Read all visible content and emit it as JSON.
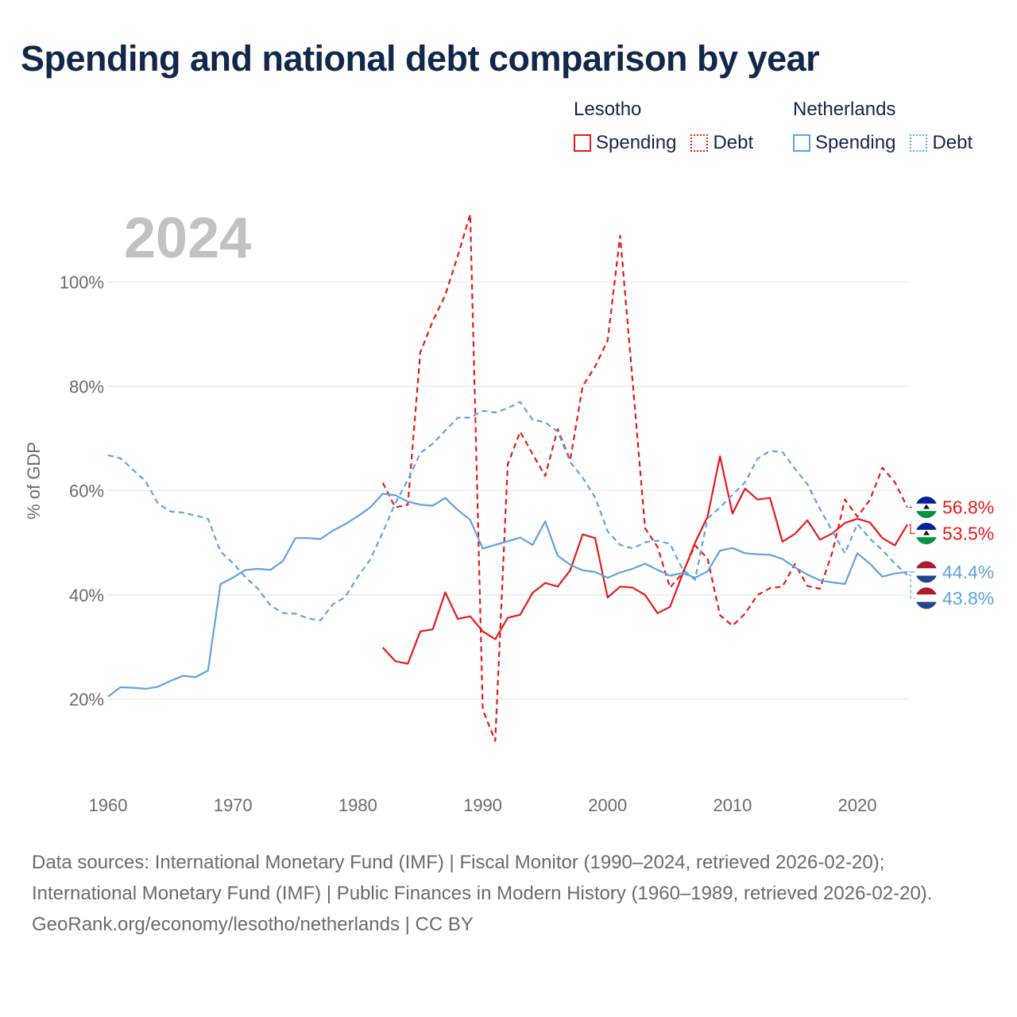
{
  "title": "Spending and national debt comparison by year",
  "legend": {
    "groups": [
      {
        "country": "Lesotho",
        "spending_label": "Spending",
        "debt_label": "Debt",
        "color": "#e8191b"
      },
      {
        "country": "Netherlands",
        "spending_label": "Spending",
        "debt_label": "Debt",
        "color": "#5fa3e6"
      }
    ]
  },
  "footer": {
    "sources": "Data sources: International Monetary Fund (IMF) | Fiscal Monitor (1990–2024, retrieved 2026-02-20); International Monetary Fund (IMF) | Public Finances in Modern History (1960–1989, retrieved 2026-02-20).",
    "credit": "GeoRank.org/economy/lesotho/netherlands | CC BY"
  },
  "chart_data": {
    "type": "line",
    "year_label": "2024",
    "ylabel": "% of GDP",
    "xlim": [
      1960,
      2024
    ],
    "ylim": [
      10,
      115
    ],
    "x_ticks": [
      1960,
      1970,
      1980,
      1990,
      2000,
      2010,
      2020
    ],
    "y_ticks": [
      20,
      40,
      60,
      80,
      100
    ],
    "y_tick_labels": [
      "20%",
      "40%",
      "60%",
      "80%",
      "100%"
    ],
    "series": [
      {
        "name": "Lesotho Spending",
        "country": "Lesotho",
        "kind": "spending",
        "color": "#e8191b",
        "dash": false,
        "end_label": "53.5%",
        "points": [
          [
            1982,
            29.9
          ],
          [
            1983,
            27.3
          ],
          [
            1984,
            26.8
          ],
          [
            1985,
            33.0
          ],
          [
            1986,
            33.4
          ],
          [
            1987,
            40.5
          ],
          [
            1988,
            35.4
          ],
          [
            1989,
            35.9
          ],
          [
            1990,
            33.0
          ],
          [
            1991,
            31.5
          ],
          [
            1992,
            35.6
          ],
          [
            1993,
            36.2
          ],
          [
            1994,
            40.4
          ],
          [
            1995,
            42.3
          ],
          [
            1996,
            41.6
          ],
          [
            1997,
            44.7
          ],
          [
            1998,
            51.6
          ],
          [
            1999,
            50.9
          ],
          [
            2000,
            39.5
          ],
          [
            2001,
            41.6
          ],
          [
            2002,
            41.4
          ],
          [
            2003,
            40.0
          ],
          [
            2004,
            36.5
          ],
          [
            2005,
            37.7
          ],
          [
            2006,
            44.0
          ],
          [
            2007,
            50.0
          ],
          [
            2008,
            55.0
          ],
          [
            2009,
            66.6
          ],
          [
            2010,
            55.6
          ],
          [
            2011,
            60.4
          ],
          [
            2012,
            58.3
          ],
          [
            2013,
            58.6
          ],
          [
            2014,
            50.2
          ],
          [
            2015,
            51.7
          ],
          [
            2016,
            54.3
          ],
          [
            2017,
            50.6
          ],
          [
            2018,
            51.8
          ],
          [
            2019,
            53.8
          ],
          [
            2020,
            54.6
          ],
          [
            2021,
            53.9
          ],
          [
            2022,
            50.9
          ],
          [
            2023,
            49.5
          ],
          [
            2024,
            53.5
          ]
        ]
      },
      {
        "name": "Lesotho Debt",
        "country": "Lesotho",
        "kind": "debt",
        "color": "#e8191b",
        "dash": true,
        "end_label": "56.8%",
        "points": [
          [
            1982,
            61.5
          ],
          [
            1983,
            56.8
          ],
          [
            1984,
            57.3
          ],
          [
            1985,
            86.5
          ],
          [
            1986,
            92.5
          ],
          [
            1987,
            97.5
          ],
          [
            1988,
            105.0
          ],
          [
            1989,
            113.0
          ],
          [
            1990,
            18.0
          ],
          [
            1991,
            12.0
          ],
          [
            1992,
            65.0
          ],
          [
            1993,
            71.3
          ],
          [
            1994,
            67.0
          ],
          [
            1995,
            62.8
          ],
          [
            1996,
            71.8
          ],
          [
            1997,
            65.8
          ],
          [
            1998,
            80.0
          ],
          [
            1999,
            83.8
          ],
          [
            2000,
            88.8
          ],
          [
            2001,
            108.9
          ],
          [
            2002,
            81.0
          ],
          [
            2003,
            52.8
          ],
          [
            2004,
            49.2
          ],
          [
            2005,
            41.4
          ],
          [
            2006,
            44.2
          ],
          [
            2007,
            49.5
          ],
          [
            2008,
            47.0
          ],
          [
            2009,
            36.1
          ],
          [
            2010,
            34.1
          ],
          [
            2011,
            36.4
          ],
          [
            2012,
            40.0
          ],
          [
            2013,
            41.3
          ],
          [
            2014,
            41.6
          ],
          [
            2015,
            45.9
          ],
          [
            2016,
            41.7
          ],
          [
            2017,
            41.2
          ],
          [
            2018,
            48.2
          ],
          [
            2019,
            58.3
          ],
          [
            2020,
            55.0
          ],
          [
            2021,
            58.2
          ],
          [
            2022,
            64.4
          ],
          [
            2023,
            61.6
          ],
          [
            2024,
            56.8
          ]
        ]
      },
      {
        "name": "Netherlands Spending",
        "country": "Netherlands",
        "kind": "spending",
        "color": "#5fa3e6",
        "dash": false,
        "end_label": "44.4%",
        "points": [
          [
            1960,
            20.5
          ],
          [
            1961,
            22.3
          ],
          [
            1962,
            22.2
          ],
          [
            1963,
            22.0
          ],
          [
            1964,
            22.4
          ],
          [
            1965,
            23.5
          ],
          [
            1966,
            24.5
          ],
          [
            1967,
            24.2
          ],
          [
            1968,
            25.5
          ],
          [
            1969,
            42.1
          ],
          [
            1970,
            43.3
          ],
          [
            1971,
            44.8
          ],
          [
            1972,
            45.0
          ],
          [
            1973,
            44.8
          ],
          [
            1974,
            46.5
          ],
          [
            1975,
            50.9
          ],
          [
            1976,
            50.9
          ],
          [
            1977,
            50.7
          ],
          [
            1978,
            52.3
          ],
          [
            1979,
            53.6
          ],
          [
            1980,
            55.1
          ],
          [
            1981,
            56.8
          ],
          [
            1982,
            59.4
          ],
          [
            1983,
            59.1
          ],
          [
            1984,
            57.9
          ],
          [
            1985,
            57.3
          ],
          [
            1986,
            57.1
          ],
          [
            1987,
            58.6
          ],
          [
            1988,
            56.3
          ],
          [
            1989,
            54.4
          ],
          [
            1990,
            48.9
          ],
          [
            1991,
            49.6
          ],
          [
            1992,
            50.3
          ],
          [
            1993,
            51.0
          ],
          [
            1994,
            49.6
          ],
          [
            1995,
            54.1
          ],
          [
            1996,
            47.5
          ],
          [
            1997,
            45.8
          ],
          [
            1998,
            44.7
          ],
          [
            1999,
            44.4
          ],
          [
            2000,
            43.3
          ],
          [
            2001,
            44.3
          ],
          [
            2002,
            45.0
          ],
          [
            2003,
            46.0
          ],
          [
            2004,
            44.8
          ],
          [
            2005,
            43.7
          ],
          [
            2006,
            44.2
          ],
          [
            2007,
            43.3
          ],
          [
            2008,
            44.5
          ],
          [
            2009,
            48.5
          ],
          [
            2010,
            49.0
          ],
          [
            2011,
            48.0
          ],
          [
            2012,
            47.8
          ],
          [
            2013,
            47.7
          ],
          [
            2014,
            46.9
          ],
          [
            2015,
            45.3
          ],
          [
            2016,
            43.9
          ],
          [
            2017,
            42.8
          ],
          [
            2018,
            42.4
          ],
          [
            2019,
            42.1
          ],
          [
            2020,
            48.0
          ],
          [
            2021,
            46.0
          ],
          [
            2022,
            43.5
          ],
          [
            2023,
            44.1
          ],
          [
            2024,
            44.4
          ]
        ]
      },
      {
        "name": "Netherlands Debt",
        "country": "Netherlands",
        "kind": "debt",
        "color": "#5fa3e6",
        "dash": true,
        "end_label": "43.8%",
        "points": [
          [
            1960,
            66.8
          ],
          [
            1961,
            66.2
          ],
          [
            1962,
            64.0
          ],
          [
            1963,
            61.8
          ],
          [
            1964,
            57.5
          ],
          [
            1965,
            56.0
          ],
          [
            1966,
            55.8
          ],
          [
            1967,
            55.2
          ],
          [
            1968,
            54.6
          ],
          [
            1969,
            48.3
          ],
          [
            1970,
            46.1
          ],
          [
            1971,
            43.4
          ],
          [
            1972,
            41.2
          ],
          [
            1973,
            38.0
          ],
          [
            1974,
            36.5
          ],
          [
            1975,
            36.4
          ],
          [
            1976,
            35.5
          ],
          [
            1977,
            35.1
          ],
          [
            1978,
            38.2
          ],
          [
            1979,
            39.6
          ],
          [
            1980,
            43.5
          ],
          [
            1981,
            46.8
          ],
          [
            1982,
            52.0
          ],
          [
            1983,
            57.6
          ],
          [
            1984,
            62.0
          ],
          [
            1985,
            67.2
          ],
          [
            1986,
            69.0
          ],
          [
            1987,
            71.5
          ],
          [
            1988,
            74.0
          ],
          [
            1989,
            74.0
          ],
          [
            1990,
            75.3
          ],
          [
            1991,
            75.0
          ],
          [
            1992,
            75.8
          ],
          [
            1993,
            77.0
          ],
          [
            1994,
            73.6
          ],
          [
            1995,
            73.1
          ],
          [
            1996,
            71.3
          ],
          [
            1997,
            65.5
          ],
          [
            1998,
            62.5
          ],
          [
            1999,
            58.7
          ],
          [
            2000,
            52.2
          ],
          [
            2001,
            49.6
          ],
          [
            2002,
            48.9
          ],
          [
            2003,
            50.1
          ],
          [
            2004,
            50.4
          ],
          [
            2005,
            49.8
          ],
          [
            2006,
            44.9
          ],
          [
            2007,
            42.9
          ],
          [
            2008,
            54.6
          ],
          [
            2009,
            56.8
          ],
          [
            2010,
            59.2
          ],
          [
            2011,
            61.6
          ],
          [
            2012,
            66.1
          ],
          [
            2013,
            67.6
          ],
          [
            2014,
            67.4
          ],
          [
            2015,
            64.2
          ],
          [
            2016,
            61.2
          ],
          [
            2017,
            56.5
          ],
          [
            2018,
            52.2
          ],
          [
            2019,
            48.0
          ],
          [
            2020,
            53.6
          ],
          [
            2021,
            50.8
          ],
          [
            2022,
            48.6
          ],
          [
            2023,
            46.0
          ],
          [
            2024,
            43.8
          ]
        ]
      }
    ]
  }
}
